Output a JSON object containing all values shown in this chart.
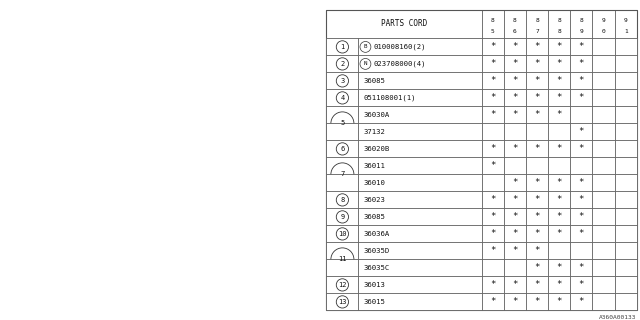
{
  "bg_color": "#ffffff",
  "col_headers": [
    "8\n5",
    "8\n6",
    "8\n7",
    "8\n8",
    "8\n9",
    "9\n0",
    "9\n1"
  ],
  "rows": [
    {
      "num": "1",
      "circle": true,
      "prefix": "B",
      "prefix_circle": true,
      "part": "010008160(2)",
      "marks": [
        1,
        1,
        1,
        1,
        1,
        0,
        0
      ]
    },
    {
      "num": "2",
      "circle": true,
      "prefix": "N",
      "prefix_circle": true,
      "part": "023708000(4)",
      "marks": [
        1,
        1,
        1,
        1,
        1,
        0,
        0
      ]
    },
    {
      "num": "3",
      "circle": true,
      "prefix": "",
      "prefix_circle": false,
      "part": "36085",
      "marks": [
        1,
        1,
        1,
        1,
        1,
        0,
        0
      ]
    },
    {
      "num": "4",
      "circle": true,
      "prefix": "",
      "prefix_circle": false,
      "part": "051108001(1)",
      "marks": [
        1,
        1,
        1,
        1,
        1,
        0,
        0
      ]
    },
    {
      "num": "5",
      "circle": true,
      "prefix": "",
      "prefix_circle": false,
      "part": "36030A",
      "marks": [
        1,
        1,
        1,
        1,
        0,
        0,
        0
      ],
      "span": true,
      "span_row": "a"
    },
    {
      "num": "5",
      "circle": false,
      "prefix": "",
      "prefix_circle": false,
      "part": "37132",
      "marks": [
        0,
        0,
        0,
        0,
        1,
        0,
        0
      ],
      "span": true,
      "span_row": "b"
    },
    {
      "num": "6",
      "circle": true,
      "prefix": "",
      "prefix_circle": false,
      "part": "36020B",
      "marks": [
        1,
        1,
        1,
        1,
        1,
        0,
        0
      ]
    },
    {
      "num": "7",
      "circle": true,
      "prefix": "",
      "prefix_circle": false,
      "part": "36011",
      "marks": [
        1,
        0,
        0,
        0,
        0,
        0,
        0
      ],
      "span": true,
      "span_row": "a"
    },
    {
      "num": "7",
      "circle": false,
      "prefix": "",
      "prefix_circle": false,
      "part": "36010",
      "marks": [
        0,
        1,
        1,
        1,
        1,
        0,
        0
      ],
      "span": true,
      "span_row": "b"
    },
    {
      "num": "8",
      "circle": true,
      "prefix": "",
      "prefix_circle": false,
      "part": "36023",
      "marks": [
        1,
        1,
        1,
        1,
        1,
        0,
        0
      ]
    },
    {
      "num": "9",
      "circle": true,
      "prefix": "",
      "prefix_circle": false,
      "part": "36085",
      "marks": [
        1,
        1,
        1,
        1,
        1,
        0,
        0
      ]
    },
    {
      "num": "10",
      "circle": true,
      "prefix": "",
      "prefix_circle": false,
      "part": "36036A",
      "marks": [
        1,
        1,
        1,
        1,
        1,
        0,
        0
      ]
    },
    {
      "num": "11",
      "circle": true,
      "prefix": "",
      "prefix_circle": false,
      "part": "36035D",
      "marks": [
        1,
        1,
        1,
        0,
        0,
        0,
        0
      ],
      "span": true,
      "span_row": "a"
    },
    {
      "num": "11",
      "circle": false,
      "prefix": "",
      "prefix_circle": false,
      "part": "36035C",
      "marks": [
        0,
        0,
        1,
        1,
        1,
        0,
        0
      ],
      "span": true,
      "span_row": "b"
    },
    {
      "num": "12",
      "circle": true,
      "prefix": "",
      "prefix_circle": false,
      "part": "36013",
      "marks": [
        1,
        1,
        1,
        1,
        1,
        0,
        0
      ]
    },
    {
      "num": "13",
      "circle": true,
      "prefix": "",
      "prefix_circle": false,
      "part": "36015",
      "marks": [
        1,
        1,
        1,
        1,
        1,
        0,
        0
      ]
    }
  ],
  "footer_code": "A360A00133"
}
